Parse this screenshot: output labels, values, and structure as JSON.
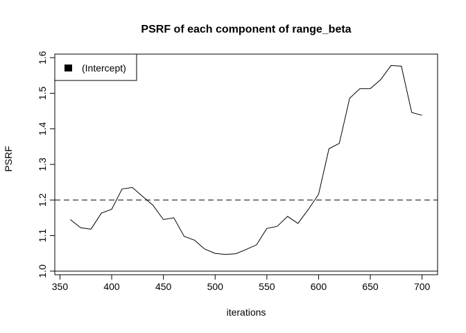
{
  "chart_data": {
    "type": "line",
    "title": "PSRF of each component of range_beta",
    "xlabel": "iterations",
    "ylabel": "PSRF",
    "xlim": [
      345,
      715
    ],
    "ylim": [
      0.99,
      1.61
    ],
    "x_ticks": [
      "350",
      "400",
      "450",
      "500",
      "550",
      "600",
      "650",
      "700"
    ],
    "y_ticks": [
      "1.0",
      "1.1",
      "1.2",
      "1.3",
      "1.4",
      "1.5",
      "1.6"
    ],
    "reference_lines": [
      {
        "y": 1.2,
        "style": "dashed"
      },
      {
        "y": 1.0,
        "style": "solid"
      }
    ],
    "legend": {
      "position": "top-left",
      "entries": [
        "(Intercept)"
      ]
    },
    "series": [
      {
        "name": "(Intercept)",
        "x": [
          360,
          370,
          380,
          390,
          400,
          410,
          420,
          430,
          440,
          450,
          460,
          470,
          480,
          490,
          500,
          510,
          520,
          530,
          540,
          550,
          560,
          570,
          580,
          590,
          600,
          610,
          620,
          630,
          640,
          650,
          660,
          670,
          680,
          690,
          700
        ],
        "y": [
          1.145,
          1.122,
          1.118,
          1.163,
          1.174,
          1.231,
          1.235,
          1.21,
          1.185,
          1.145,
          1.15,
          1.098,
          1.087,
          1.062,
          1.05,
          1.047,
          1.049,
          1.061,
          1.074,
          1.12,
          1.126,
          1.154,
          1.134,
          1.173,
          1.216,
          1.344,
          1.359,
          1.486,
          1.513,
          1.513,
          1.538,
          1.578,
          1.576,
          1.446,
          1.438
        ]
      }
    ]
  }
}
